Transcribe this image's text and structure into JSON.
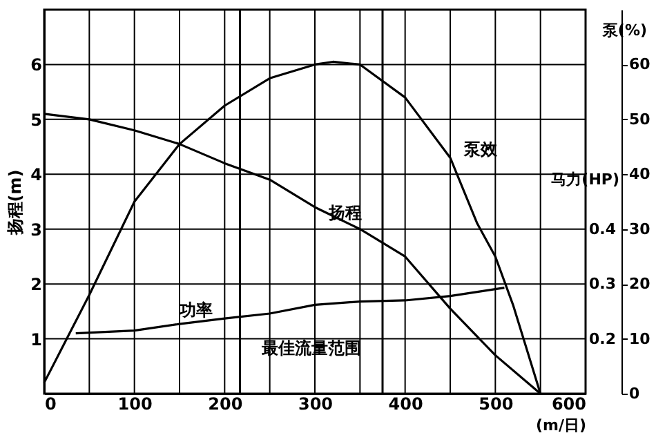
{
  "chart_data": {
    "type": "line",
    "xlabel": "(m/日)",
    "ylabel": "扬程(m)",
    "y2label": "泵(%)",
    "y3label": "马力(HP)",
    "xlim": [
      0,
      600
    ],
    "xticks": [
      0,
      {
        "value": 50,
        "label": null
      },
      100,
      {
        "value": 150,
        "label": null
      },
      200,
      {
        "value": 250,
        "label": null
      },
      300,
      {
        "value": 350,
        "label": null
      },
      400,
      {
        "value": 450,
        "label": null
      },
      500,
      {
        "value": 550,
        "label": null
      },
      600
    ],
    "ylim": [
      0,
      7
    ],
    "yticks": [
      1,
      2,
      3,
      4,
      5,
      6
    ],
    "y2lim": [
      0,
      70
    ],
    "y2ticks": [
      0,
      10,
      20,
      30,
      40,
      50,
      60
    ],
    "y3lim": [
      0.1,
      0.8
    ],
    "y3ticks": [
      0.2,
      0.3,
      0.4
    ],
    "grid": true,
    "legend": false,
    "series": [
      {
        "name": "扬程",
        "color": "#000000",
        "x": [
          0,
          50,
          100,
          150,
          200,
          250,
          300,
          350,
          400,
          450,
          500,
          550
        ],
        "values": [
          5.1,
          5.0,
          4.8,
          4.55,
          4.2,
          3.9,
          3.4,
          3.0,
          2.5,
          1.55,
          0.7,
          0
        ]
      },
      {
        "name": "泵效",
        "color": "#000000",
        "axis": "y2",
        "x": [
          0,
          25,
          50,
          100,
          150,
          200,
          250,
          300,
          320,
          350,
          400,
          450,
          480,
          500,
          520,
          550
        ],
        "values": [
          2,
          10,
          18,
          35,
          45.5,
          52.5,
          57.5,
          60,
          60.5,
          60,
          54,
          43,
          31,
          25,
          16,
          0
        ]
      },
      {
        "name": "功率",
        "color": "#000000",
        "axis": "y3",
        "x": [
          35,
          100,
          150,
          200,
          250,
          300,
          350,
          400,
          450,
          510
        ],
        "values": [
          0.21,
          0.215,
          0.227,
          0.237,
          0.246,
          0.262,
          0.268,
          0.27,
          0.278,
          0.293
        ]
      }
    ],
    "ref_lines": [
      {
        "axis": "x",
        "value": 217
      },
      {
        "axis": "x",
        "value": 375
      }
    ],
    "annotations": [
      "最佳流量范围"
    ]
  }
}
